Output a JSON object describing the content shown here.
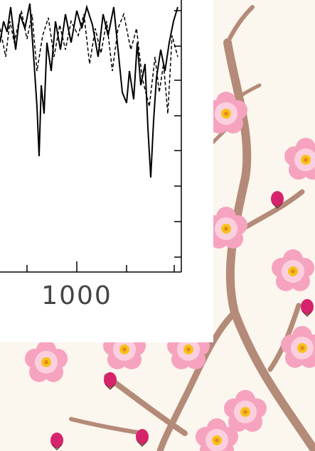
{
  "chart_fragment": {
    "x_tick_label": "1000"
  }
}
